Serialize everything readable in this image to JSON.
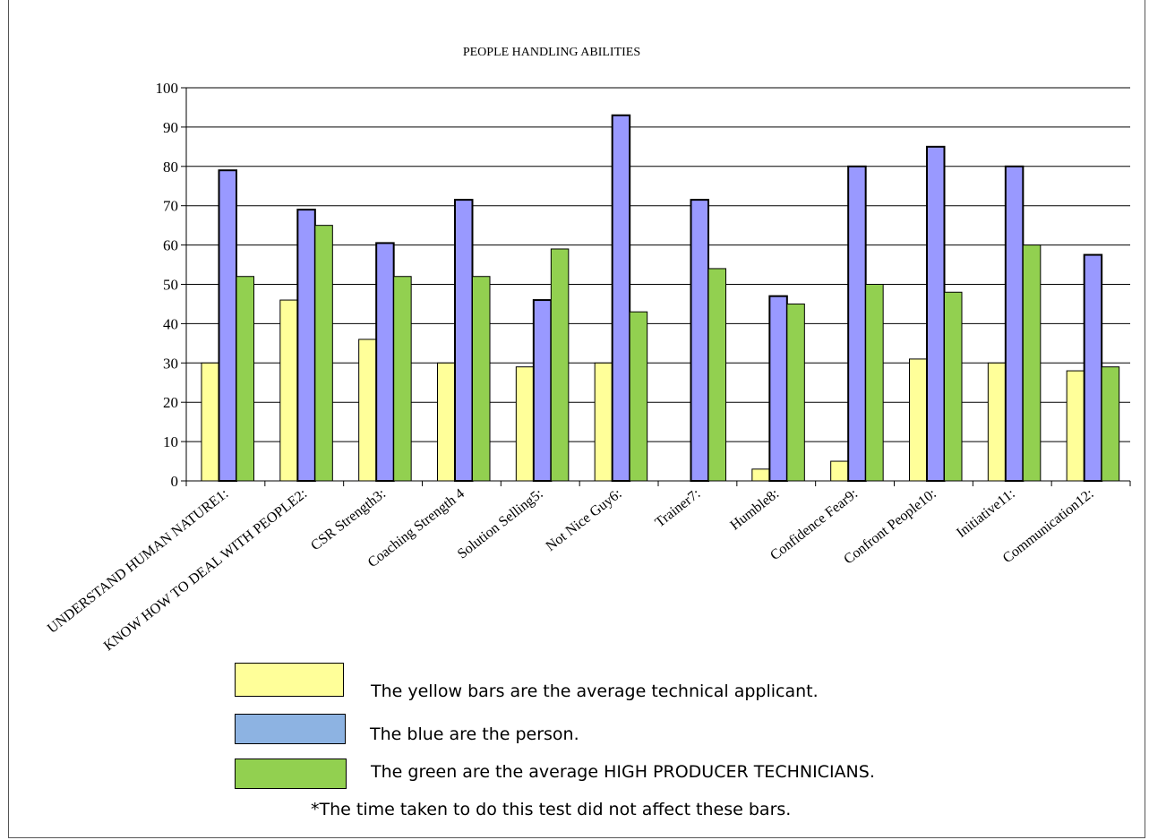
{
  "chart_data": {
    "type": "bar",
    "title": "PEOPLE HANDLING ABILITIES",
    "categories": [
      "UNDERSTAND HUMAN NATURE1:",
      "KNOW HOW TO DEAL WITH PEOPLE2:",
      "CSR Strength3:",
      "Coaching Strength 4",
      "Solution Selling5:",
      "Not Nice Guy6:",
      "Trainer7:",
      "Humble8:",
      "Confidence Fear9:",
      "Confront People10:",
      "Initiative11:",
      "Communication12:"
    ],
    "series": [
      {
        "color": "#ffff99",
        "values": [
          30,
          46,
          36,
          30,
          29,
          30,
          0,
          3,
          5,
          31,
          30,
          28
        ]
      },
      {
        "color": "#9999ff",
        "values": [
          79,
          69,
          60.5,
          71.5,
          46,
          93,
          71.5,
          47,
          80,
          85,
          80,
          57.5
        ]
      },
      {
        "color": "#92d050",
        "values": [
          52,
          65,
          52,
          52,
          59,
          43,
          54,
          45,
          50,
          48,
          60,
          29
        ]
      }
    ],
    "yticks": [
      "0",
      "10",
      "20",
      "30",
      "40",
      "50",
      "60",
      "70",
      "80",
      "90",
      "100"
    ],
    "ylim": [
      0,
      100
    ],
    "grid": true
  },
  "legend": {
    "yellow": {
      "text": "The yellow bars are the average technical applicant.",
      "color": "#ffff99"
    },
    "blue": {
      "text": "The blue are the person.",
      "color": "#8db3e2"
    },
    "green": {
      "text": "The green are the average HIGH PRODUCER TECHNICIANS.",
      "color": "#92d050"
    },
    "note": "*The time taken to do this test did not affect these bars."
  }
}
